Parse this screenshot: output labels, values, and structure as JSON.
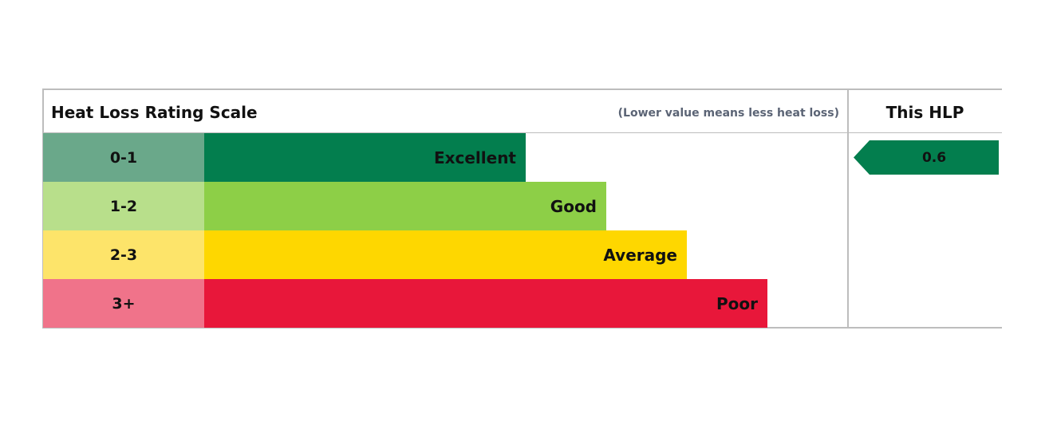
{
  "header": {
    "title": "Heat Loss Rating Scale",
    "note": "(Lower value means less heat loss)",
    "hlp_title": "This HLP"
  },
  "rows": [
    {
      "range": "0-1",
      "label": "Excellent",
      "range_color": "#6aa88a",
      "bar_color": "#037e4e"
    },
    {
      "range": "1-2",
      "label": "Good",
      "range_color": "#b8df8b",
      "bar_color": "#8dcf47"
    },
    {
      "range": "2-3",
      "label": "Average",
      "range_color": "#fde46a",
      "bar_color": "#fed700"
    },
    {
      "range": "3+",
      "label": "Poor",
      "range_color": "#f0738a",
      "bar_color": "#e8173a"
    }
  ],
  "hlp": {
    "value": 0.6,
    "color": "#037e4e"
  }
}
